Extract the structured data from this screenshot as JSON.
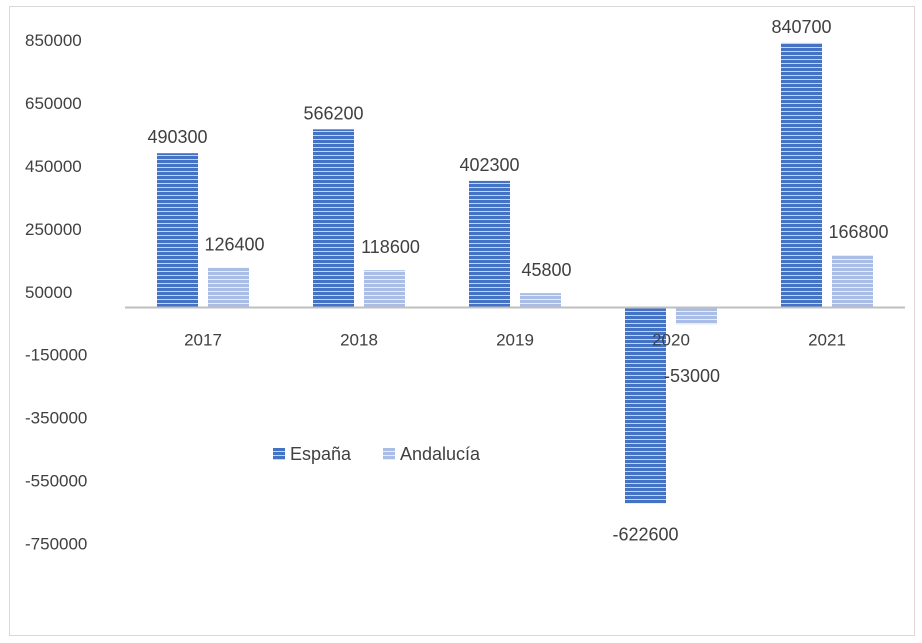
{
  "chart_data": {
    "type": "bar",
    "categories": [
      "2017",
      "2018",
      "2019",
      "2020",
      "2021"
    ],
    "series": [
      {
        "name": "España",
        "values": [
          490300,
          566200,
          402300,
          -622600,
          840700
        ],
        "color": "#4472c4"
      },
      {
        "name": "Andalucía",
        "values": [
          126400,
          118600,
          45800,
          -53000,
          166800
        ],
        "color": "#a9bde6"
      }
    ],
    "y_ticks": [
      "850000",
      "650000",
      "450000",
      "250000",
      "50000",
      "-150000",
      "-350000",
      "-550000",
      "-750000"
    ],
    "ylim": [
      -850000,
      850000
    ],
    "grid": false,
    "legend_position": "middle-left",
    "title": "",
    "xlabel": "",
    "ylabel": ""
  }
}
